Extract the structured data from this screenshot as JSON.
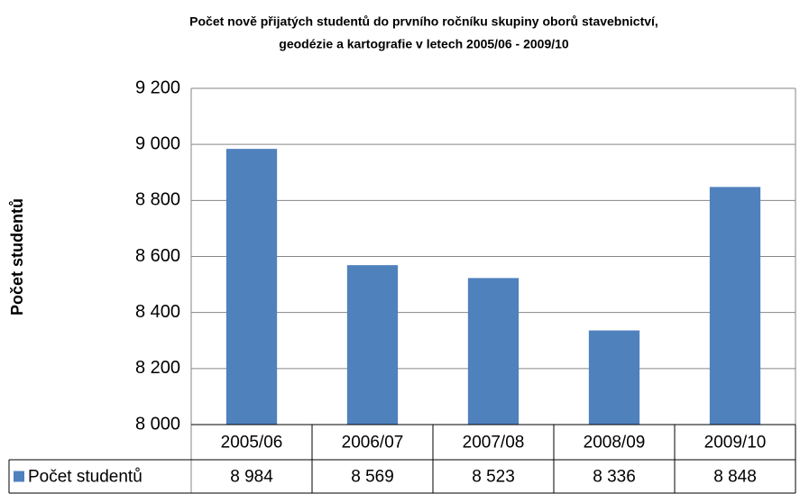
{
  "chart_data": {
    "type": "bar",
    "title": [
      "Počet  nově přijatých studentů do prvního ročníku skupiny oborů stavebnictví,",
      "geodézie a kartografie v letech 2005/06 - 2009/10"
    ],
    "y_label": "Počet studentů",
    "categories": [
      "2005/06",
      "2006/07",
      "2007/08",
      "2008/09",
      "2009/10"
    ],
    "series": [
      {
        "name": "Počet studentů",
        "color": "#4f81bd",
        "values": [
          8984,
          8569,
          8523,
          8336,
          8848
        ],
        "value_labels": [
          "8 984",
          "8 569",
          "8 523",
          "8 336",
          "8 848"
        ]
      }
    ],
    "ylim": [
      8000,
      9200
    ],
    "yticks": [
      {
        "value": 8000,
        "label": "8 000"
      },
      {
        "value": 8200,
        "label": "8 200"
      },
      {
        "value": 8400,
        "label": "8 400"
      },
      {
        "value": 8600,
        "label": "8 600"
      },
      {
        "value": 8800,
        "label": "8 800"
      },
      {
        "value": 9000,
        "label": "9 000"
      },
      {
        "value": 9200,
        "label": "9 200"
      }
    ],
    "grid": true,
    "legend": "table"
  }
}
